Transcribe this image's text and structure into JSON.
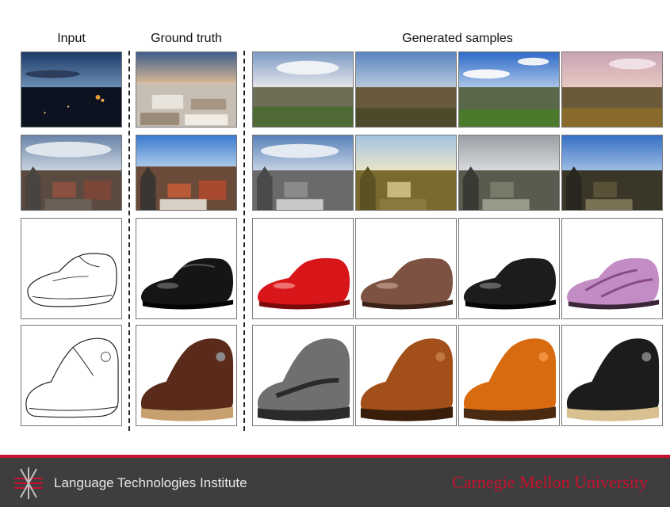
{
  "headers": {
    "input": "Input",
    "ground_truth": "Ground truth",
    "generated": "Generated samples"
  },
  "footer": {
    "institute": "Language Technologies Institute",
    "university": "Carnegie Mellon University"
  },
  "colors": {
    "cmu_red": "#c4122f",
    "footer_bg": "#3e3e3e",
    "shoe_ground_truth_1": "#151515",
    "shoe_samples_1": [
      "#d8161a",
      "#7d5242",
      "#1c1c1c",
      "#c48cc4"
    ],
    "shoe_ground_truth_2": "#5a2a1a",
    "shoe_samples_2": [
      "#6f6f6f",
      "#a34f1a",
      "#d86a10",
      "#1c1c1c"
    ]
  }
}
